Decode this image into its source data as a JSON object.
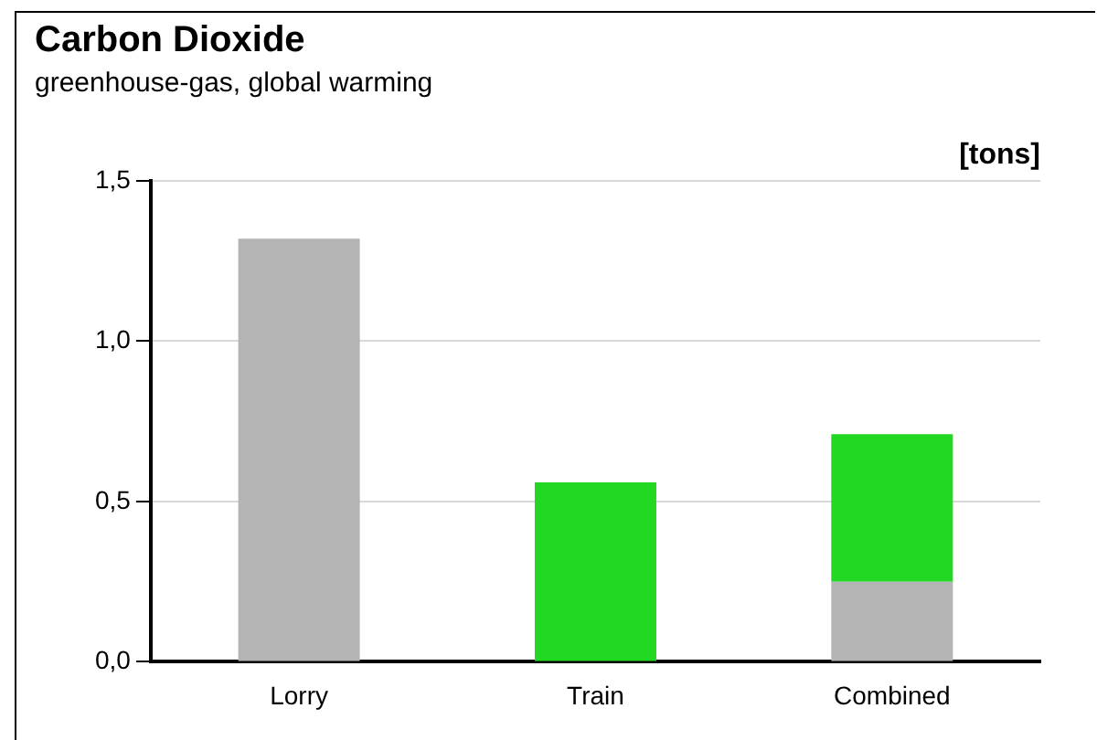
{
  "chart_data": {
    "type": "bar",
    "title": "Carbon Dioxide",
    "subtitle": "greenhouse-gas, global warming",
    "ylabel": "[tons]",
    "categories": [
      "Lorry",
      "Train",
      "Combined"
    ],
    "stacked": true,
    "series": [
      {
        "color": "#b4b4b4",
        "values": [
          1.32,
          null,
          0.25
        ]
      },
      {
        "color": "#22d822",
        "values": [
          null,
          0.56,
          0.46
        ]
      }
    ],
    "ylim": [
      0,
      1.5
    ],
    "yticks": [
      {
        "value": 0,
        "label": "0,0"
      },
      {
        "value": 0.5,
        "label": "0,5"
      },
      {
        "value": 1,
        "label": "1,0"
      },
      {
        "value": 1.5,
        "label": "1,5"
      }
    ],
    "grid": "y",
    "legend": false
  }
}
